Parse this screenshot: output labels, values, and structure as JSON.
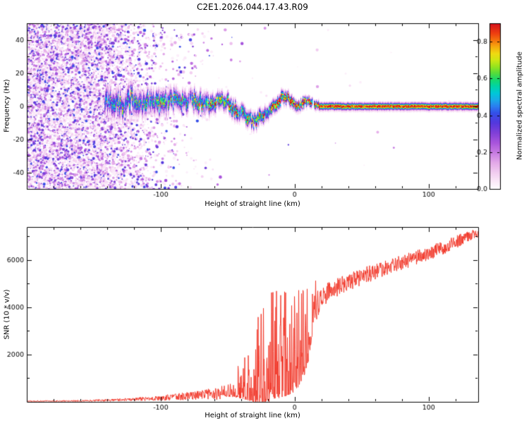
{
  "page": {
    "title": "C2E1.2026.044.17.43.R09",
    "background": "#ffffff"
  },
  "colormap": {
    "range": [
      0,
      0.9
    ],
    "stops": [
      [
        0.0,
        "#ffffff"
      ],
      [
        0.04,
        "#fcecf9"
      ],
      [
        0.1,
        "#f2cdf0"
      ],
      [
        0.16,
        "#e3a9e9"
      ],
      [
        0.22,
        "#c87ce2"
      ],
      [
        0.28,
        "#a955dc"
      ],
      [
        0.34,
        "#8040d8"
      ],
      [
        0.4,
        "#5538dd"
      ],
      [
        0.46,
        "#3350e8"
      ],
      [
        0.5,
        "#2b7ef0"
      ],
      [
        0.54,
        "#19aae8"
      ],
      [
        0.58,
        "#00c8d8"
      ],
      [
        0.62,
        "#00d4a8"
      ],
      [
        0.66,
        "#16d86e"
      ],
      [
        0.7,
        "#55dc3c"
      ],
      [
        0.74,
        "#96e41e"
      ],
      [
        0.78,
        "#cfe714"
      ],
      [
        0.82,
        "#f0d911"
      ],
      [
        0.86,
        "#f5a90e"
      ],
      [
        0.9,
        "#f4720d"
      ],
      [
        0.94,
        "#ee3f10"
      ],
      [
        1.0,
        "#d5121e"
      ]
    ]
  },
  "chart_data": [
    {
      "type": "heatmap",
      "title": "C2E1.2026.044.17.43.R09",
      "xlabel": "Height of straight line (km)",
      "ylabel": "Frequency (Hz)",
      "xlim": [
        -200,
        137
      ],
      "ylim": [
        -50,
        50
      ],
      "xticks": [
        -100,
        0,
        100
      ],
      "xminor_step": 20,
      "yticks": [
        -40,
        -20,
        0,
        20,
        40
      ],
      "yminor_step": 10,
      "colorbar": {
        "label": "Normalized spectral amplitude",
        "ticks": [
          0,
          0.2,
          0.4,
          0.6,
          0.8
        ],
        "range": [
          0,
          0.9
        ]
      },
      "noise_density": [
        [
          -200,
          0.62
        ],
        [
          -150,
          0.58
        ],
        [
          -135,
          0.5
        ],
        [
          -125,
          0.38
        ],
        [
          -112,
          0.2
        ],
        [
          -98,
          0.09
        ],
        [
          -80,
          0.035
        ],
        [
          -60,
          0.012
        ],
        [
          -35,
          0.004
        ],
        [
          -20,
          0.0012
        ],
        [
          137,
          0.0005
        ]
      ],
      "band": [
        [
          -142,
          3,
          8,
          0.42
        ],
        [
          -130,
          2,
          8,
          0.46
        ],
        [
          -122,
          5,
          8,
          0.5
        ],
        [
          -114,
          2,
          7,
          0.5
        ],
        [
          -106,
          4,
          7,
          0.52
        ],
        [
          -98,
          1,
          7,
          0.55
        ],
        [
          -90,
          5,
          6,
          0.55
        ],
        [
          -82,
          2,
          6,
          0.58
        ],
        [
          -74,
          5,
          6,
          0.58
        ],
        [
          -66,
          1,
          6,
          0.6
        ],
        [
          -58,
          4,
          5,
          0.6
        ],
        [
          -50,
          2,
          5,
          0.62
        ],
        [
          -44,
          -2,
          5,
          0.65
        ],
        [
          -38,
          -6,
          5,
          0.68
        ],
        [
          -32,
          -8,
          4.5,
          0.68
        ],
        [
          -26,
          -7,
          4.5,
          0.7
        ],
        [
          -20,
          -3,
          4,
          0.72
        ],
        [
          -15,
          1,
          4,
          0.78
        ],
        [
          -10,
          5,
          4,
          0.8
        ],
        [
          -5,
          6,
          3.5,
          0.82
        ],
        [
          -1,
          2,
          3.5,
          0.82
        ],
        [
          3,
          -1,
          3,
          0.84
        ],
        [
          7,
          3,
          3,
          0.86
        ],
        [
          11,
          4,
          2.8,
          0.86
        ],
        [
          15,
          1,
          2.6,
          0.88
        ],
        [
          19,
          0,
          2.4,
          0.88
        ],
        [
          30,
          0,
          2.4,
          0.9
        ],
        [
          60,
          0,
          2.4,
          0.9
        ],
        [
          100,
          0,
          2.4,
          0.9
        ],
        [
          137,
          0,
          2.4,
          0.9
        ]
      ]
    },
    {
      "type": "line",
      "xlabel": "Height of straight line (km)",
      "ylabel": "SNR (10 * v/v)",
      "xlim": [
        -200,
        137
      ],
      "ylim": [
        0,
        7400
      ],
      "xticks": [
        -100,
        0,
        100
      ],
      "xminor_step": 20,
      "yticks": [
        2000,
        4000,
        6000
      ],
      "yminor_step": 1000,
      "line_color": "#f03122",
      "snr_profile": [
        [
          -200,
          30,
          25
        ],
        [
          -180,
          35,
          28
        ],
        [
          -160,
          45,
          35
        ],
        [
          -145,
          60,
          45
        ],
        [
          -130,
          85,
          60
        ],
        [
          -118,
          110,
          80
        ],
        [
          -108,
          140,
          100
        ],
        [
          -98,
          170,
          120
        ],
        [
          -88,
          210,
          150
        ],
        [
          -78,
          260,
          190
        ],
        [
          -68,
          310,
          230
        ],
        [
          -60,
          340,
          260
        ],
        [
          -52,
          370,
          300
        ],
        [
          -46,
          420,
          420
        ],
        [
          -40,
          550,
          800
        ],
        [
          -34,
          700,
          1300
        ],
        [
          -28,
          850,
          1800
        ],
        [
          -22,
          1050,
          2200
        ],
        [
          -16,
          1300,
          2500
        ],
        [
          -11,
          1500,
          2700
        ],
        [
          -6,
          1550,
          2600
        ],
        [
          -1,
          1600,
          2400
        ],
        [
          3,
          1800,
          2300
        ],
        [
          7,
          2100,
          2100
        ],
        [
          10,
          2600,
          1900
        ],
        [
          13,
          3400,
          1200
        ],
        [
          16,
          4100,
          700
        ],
        [
          20,
          4450,
          480
        ],
        [
          28,
          4750,
          430
        ],
        [
          38,
          5000,
          400
        ],
        [
          50,
          5300,
          380
        ],
        [
          62,
          5550,
          360
        ],
        [
          75,
          5800,
          340
        ],
        [
          88,
          6050,
          330
        ],
        [
          100,
          6300,
          320
        ],
        [
          112,
          6550,
          300
        ],
        [
          122,
          6800,
          280
        ],
        [
          130,
          7000,
          260
        ],
        [
          137,
          7200,
          240
        ]
      ]
    }
  ]
}
